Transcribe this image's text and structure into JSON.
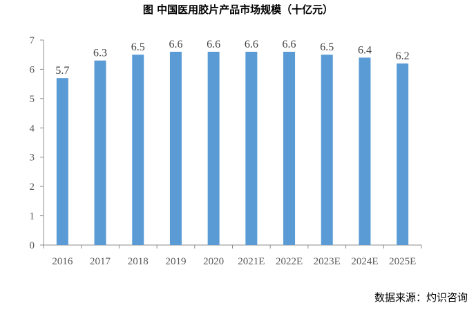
{
  "chart_data": {
    "type": "bar",
    "title": "图 中国医用胶片产品市场规模（十亿元）",
    "categories": [
      "2016",
      "2017",
      "2018",
      "2019",
      "2020",
      "2021E",
      "2022E",
      "2023E",
      "2024E",
      "2025E"
    ],
    "values": [
      5.7,
      6.3,
      6.5,
      6.6,
      6.6,
      6.6,
      6.6,
      6.5,
      6.4,
      6.2
    ],
    "ylim": [
      0,
      7
    ],
    "yticks": [
      0,
      1,
      2,
      3,
      4,
      5,
      6,
      7
    ],
    "xlabel": "",
    "ylabel": "",
    "bar_color": "#5B9BD5",
    "grid": false,
    "legend": "none"
  },
  "source": "数据来源：灼识咨询"
}
